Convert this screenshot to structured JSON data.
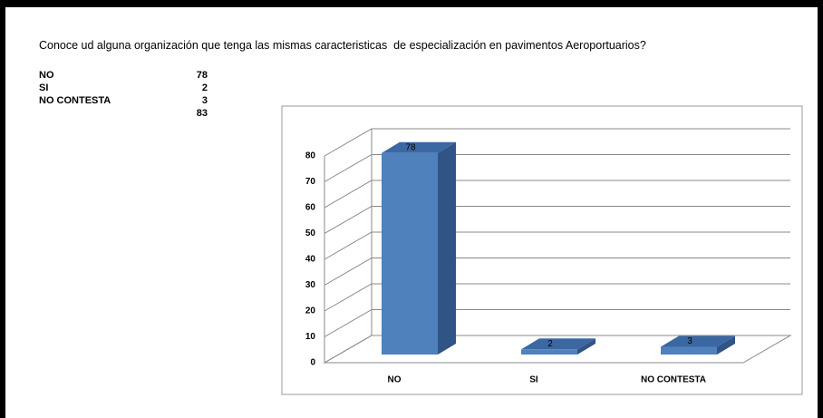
{
  "question": "Conoce ud alguna organización que tenga las mismas caracteristicas  de especialización en pavimentos Aeroportuarios?",
  "table": {
    "rows": [
      [
        "NO",
        78
      ],
      [
        "SI",
        2
      ],
      [
        "NO CONTESTA",
        3
      ]
    ],
    "total": 83
  },
  "chart_data": {
    "type": "bar3d",
    "categories": [
      "NO",
      "SI",
      "NO CONTESTA"
    ],
    "values": [
      78,
      2,
      3
    ],
    "color": "#4f81bd",
    "ylim": [
      0,
      80
    ],
    "yticks": [
      0,
      10,
      20,
      30,
      40,
      50,
      60,
      70,
      80
    ],
    "grid": true
  }
}
